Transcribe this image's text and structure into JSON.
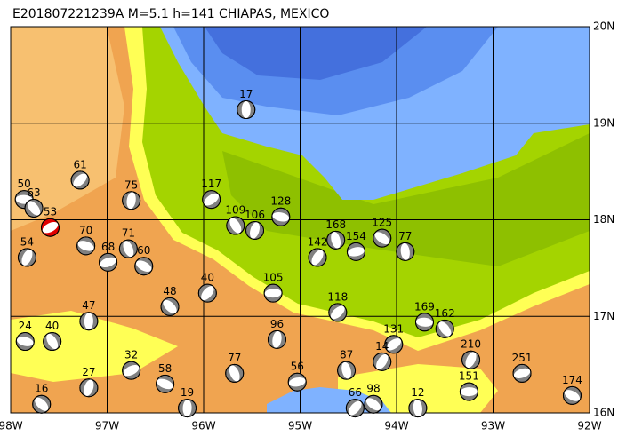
{
  "header": {
    "title": "E201807221239A M=5.1 h=141 CHIAPAS, MEXICO"
  },
  "lon_labels": [
    "98W",
    "97W",
    "96W",
    "95W",
    "94W",
    "93W",
    "92W"
  ],
  "lat_labels": [
    "20N",
    "19N",
    "18N",
    "17N",
    "16N"
  ],
  "events": [
    {
      "label": "17",
      "lon": -95.56,
      "lat": 19.14
    },
    {
      "label": "61",
      "lon": -97.28,
      "lat": 18.41
    },
    {
      "label": "50",
      "lon": -97.86,
      "lat": 18.21
    },
    {
      "label": "63",
      "lon": -97.76,
      "lat": 18.12
    },
    {
      "label": "75",
      "lon": -96.75,
      "lat": 18.2
    },
    {
      "label": "117",
      "lon": -95.92,
      "lat": 18.21
    },
    {
      "label": "128",
      "lon": -95.2,
      "lat": 18.03
    },
    {
      "label": "109",
      "lon": -95.67,
      "lat": 17.94
    },
    {
      "label": "106",
      "lon": -95.47,
      "lat": 17.89
    },
    {
      "label": "53",
      "lon": -97.59,
      "lat": 17.92,
      "highlight": true
    },
    {
      "label": "70",
      "lon": -97.22,
      "lat": 17.73
    },
    {
      "label": "71",
      "lon": -96.78,
      "lat": 17.7
    },
    {
      "label": "54",
      "lon": -97.83,
      "lat": 17.61
    },
    {
      "label": "68",
      "lon": -96.99,
      "lat": 17.56
    },
    {
      "label": "60",
      "lon": -96.62,
      "lat": 17.52
    },
    {
      "label": "168",
      "lon": -94.63,
      "lat": 17.79
    },
    {
      "label": "142",
      "lon": -94.82,
      "lat": 17.61
    },
    {
      "label": "154",
      "lon": -94.42,
      "lat": 17.67
    },
    {
      "label": "125",
      "lon": -94.15,
      "lat": 17.81
    },
    {
      "label": "77",
      "lon": -93.91,
      "lat": 17.67
    },
    {
      "label": "40",
      "lon": -95.96,
      "lat": 17.24
    },
    {
      "label": "105",
      "lon": -95.28,
      "lat": 17.24
    },
    {
      "label": "48",
      "lon": -96.35,
      "lat": 17.1
    },
    {
      "label": "47",
      "lon": -97.19,
      "lat": 16.95
    },
    {
      "label": "118",
      "lon": -94.61,
      "lat": 17.04
    },
    {
      "label": "169",
      "lon": -93.71,
      "lat": 16.94
    },
    {
      "label": "162",
      "lon": -93.5,
      "lat": 16.87
    },
    {
      "label": "96",
      "lon": -95.24,
      "lat": 16.76
    },
    {
      "label": "131",
      "lon": -94.03,
      "lat": 16.71
    },
    {
      "label": "24",
      "lon": -97.85,
      "lat": 16.74
    },
    {
      "label": "40",
      "lon": -97.57,
      "lat": 16.74
    },
    {
      "label": "27",
      "lon": -97.19,
      "lat": 16.26
    },
    {
      "label": "32",
      "lon": -96.75,
      "lat": 16.44
    },
    {
      "label": "58",
      "lon": -96.4,
      "lat": 16.3
    },
    {
      "label": "77",
      "lon": -95.68,
      "lat": 16.41
    },
    {
      "label": "210",
      "lon": -93.23,
      "lat": 16.55
    },
    {
      "label": "251",
      "lon": -92.7,
      "lat": 16.41
    },
    {
      "label": "174",
      "lon": -92.18,
      "lat": 16.18
    },
    {
      "label": "87",
      "lon": -94.52,
      "lat": 16.44
    },
    {
      "label": "14",
      "lon": -94.15,
      "lat": 16.53
    },
    {
      "label": "56",
      "lon": -95.03,
      "lat": 16.32
    },
    {
      "label": "98",
      "lon": -94.24,
      "lat": 16.09
    },
    {
      "label": "12",
      "lon": -93.78,
      "lat": 16.05
    },
    {
      "label": "66",
      "lon": -94.43,
      "lat": 16.05
    },
    {
      "label": "151",
      "lon": -93.25,
      "lat": 16.22
    },
    {
      "label": "16",
      "lon": -97.68,
      "lat": 16.09
    },
    {
      "label": "19",
      "lon": -96.17,
      "lat": 16.05
    }
  ]
}
